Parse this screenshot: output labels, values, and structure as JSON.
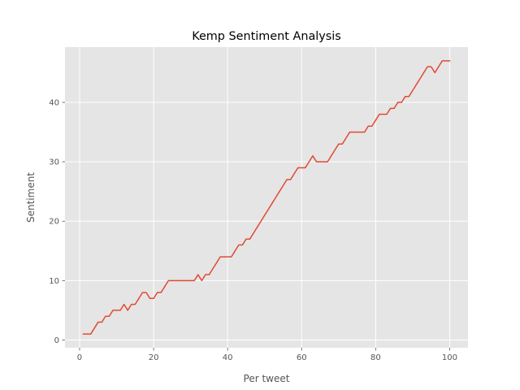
{
  "chart_data": {
    "type": "line",
    "title": "Kemp Sentiment Analysis",
    "xlabel": "Per tweet",
    "ylabel": "Sentiment",
    "xlim": [
      -3.95,
      104.95
    ],
    "ylim": [
      -1.3,
      49.3
    ],
    "xticks": [
      0,
      20,
      40,
      60,
      80,
      100
    ],
    "yticks": [
      0,
      10,
      20,
      30,
      40
    ],
    "grid": true,
    "style": "ggplot",
    "series": [
      {
        "color": "#E24A33",
        "x": [
          1,
          3,
          5,
          6,
          7,
          8,
          9,
          10,
          11,
          12,
          13,
          14,
          15,
          16,
          17,
          18,
          19,
          20,
          21,
          22,
          23,
          24,
          25,
          26,
          27,
          28,
          29,
          30,
          31,
          32,
          33,
          34,
          35,
          36,
          37,
          38,
          39,
          40,
          41,
          42,
          43,
          44,
          45,
          46,
          47,
          48,
          49,
          50,
          51,
          52,
          53,
          54,
          55,
          56,
          57,
          58,
          59,
          60,
          61,
          62,
          63,
          64,
          65,
          66,
          67,
          68,
          69,
          70,
          71,
          72,
          73,
          74,
          75,
          76,
          77,
          78,
          79,
          80,
          81,
          82,
          83,
          84,
          85,
          86,
          87,
          88,
          89,
          90,
          91,
          92,
          93,
          94,
          95,
          96,
          97,
          98,
          99,
          100
        ],
        "values": [
          1,
          1,
          3,
          3,
          4,
          4,
          5,
          5,
          5,
          6,
          5,
          6,
          6,
          7,
          8,
          8,
          7,
          7,
          8,
          8,
          9,
          10,
          10,
          10,
          10,
          10,
          10,
          10,
          10,
          11,
          10,
          11,
          11,
          12,
          13,
          14,
          14,
          14,
          14,
          15,
          16,
          16,
          17,
          17,
          18,
          19,
          20,
          21,
          22,
          23,
          24,
          25,
          26,
          27,
          27,
          28,
          29,
          29,
          29,
          30,
          31,
          30,
          30,
          30,
          30,
          31,
          32,
          33,
          33,
          34,
          35,
          35,
          35,
          35,
          35,
          36,
          36,
          37,
          38,
          38,
          38,
          39,
          39,
          40,
          40,
          41,
          41,
          42,
          43,
          44,
          45,
          46,
          46,
          45,
          46,
          47,
          47,
          47
        ]
      }
    ]
  }
}
